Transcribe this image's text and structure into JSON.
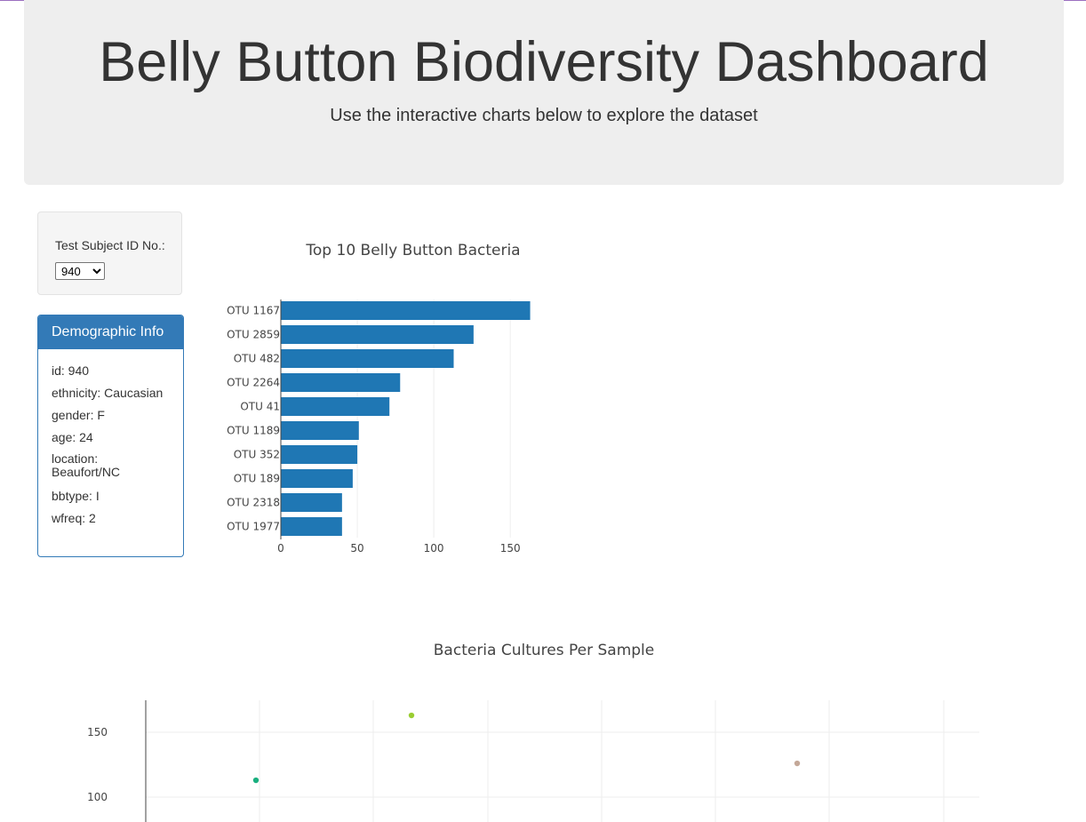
{
  "header": {
    "title": "Belly Button Biodiversity Dashboard",
    "subtitle": "Use the interactive charts below to explore the dataset"
  },
  "selector": {
    "label": "Test Subject ID No.:",
    "selected": "940"
  },
  "demographics": {
    "heading": "Demographic Info",
    "rows": [
      "id: 940",
      "ethnicity: Caucasian",
      "gender: F",
      "age: 24",
      "location: Beaufort/NC",
      "bbtype: I",
      "wfreq: 2"
    ]
  },
  "colors": {
    "bar": "#1f77b4",
    "panel_primary": "#337ab7",
    "jumbotron_bg": "#eeeeee"
  },
  "chart_data": [
    {
      "type": "bar",
      "orientation": "horizontal",
      "title": "Top 10 Belly Button Bacteria",
      "categories": [
        "OTU 1167",
        "OTU 2859",
        "OTU 482",
        "OTU 2264",
        "OTU 41",
        "OTU 1189",
        "OTU 352",
        "OTU 189",
        "OTU 2318",
        "OTU 1977"
      ],
      "values": [
        163,
        126,
        113,
        78,
        71,
        51,
        50,
        47,
        40,
        40
      ],
      "xticks": [
        0,
        50,
        100,
        150
      ],
      "xlim": [
        0,
        165
      ],
      "xlabel": "",
      "ylabel": "",
      "grid": true
    },
    {
      "type": "scatter",
      "title": "Bacteria Cultures Per Sample",
      "points": [
        {
          "x": 1167,
          "y": 163,
          "color": "#9acd32"
        },
        {
          "x": 2859,
          "y": 126,
          "color": "#c4a898"
        },
        {
          "x": 482,
          "y": 113,
          "color": "#1aaf7f"
        }
      ],
      "yticks": [
        100,
        150
      ],
      "xlabel": "",
      "ylabel": "",
      "grid": true
    }
  ]
}
